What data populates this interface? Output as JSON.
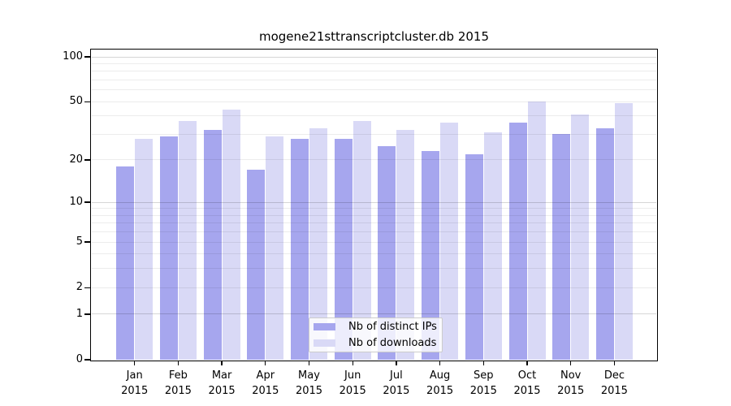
{
  "chart_data": {
    "type": "bar",
    "title": "mogene21sttranscriptcluster.db 2015",
    "year": "2015",
    "categories": [
      "Jan",
      "Feb",
      "Mar",
      "Apr",
      "May",
      "Jun",
      "Jul",
      "Aug",
      "Sep",
      "Oct",
      "Nov",
      "Dec"
    ],
    "series": [
      {
        "name": "Nb of distinct IPs",
        "color": "#a6a6ee",
        "values": [
          18,
          29,
          32,
          17,
          28,
          28,
          25,
          23,
          22,
          36,
          30,
          33
        ]
      },
      {
        "name": "Nb of downloads",
        "color": "#d9d9f6",
        "values": [
          28,
          37,
          44,
          29,
          33,
          37,
          32,
          36,
          31,
          50,
          41,
          49
        ]
      }
    ],
    "yscale": "log1p",
    "yticks": [
      0,
      1,
      2,
      5,
      10,
      20,
      50,
      100
    ],
    "ylim": [
      0,
      110
    ],
    "grid": true,
    "gridlines": {
      "minor": [
        2,
        3,
        4,
        5,
        6,
        7,
        8,
        9,
        20,
        30,
        40,
        50,
        60,
        70,
        80,
        90
      ],
      "major": [
        1,
        10,
        100
      ]
    },
    "legend_position": "inside-bottom-center",
    "colors": {
      "axis": "#000000",
      "background": "#ffffff"
    }
  }
}
